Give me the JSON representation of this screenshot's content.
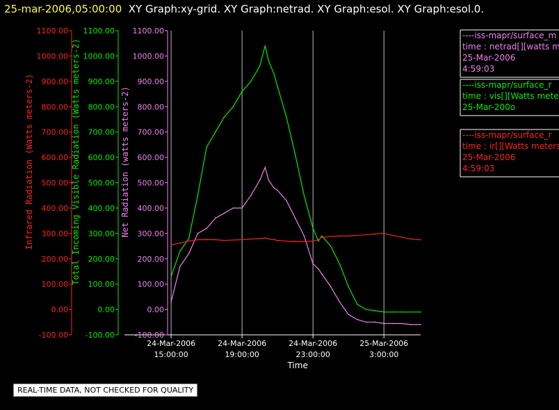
{
  "header": {
    "date_text": "25-mar-2006,05:00:00",
    "graph_titles": "XY Graph:xy-grid.  XY Graph:netrad.  XY Graph:esol.  XY Graph:esol.0."
  },
  "quality_note": "REAL-TIME DATA, NOT CHECKED FOR QUALITY",
  "colors": {
    "ir": "#ff2020",
    "vis": "#00ee00",
    "net": "#ee82ee",
    "grid": "#bbbbbb",
    "axis": "#ffffff"
  },
  "chart_data": {
    "type": "line",
    "xlabel": "Time",
    "x_ticks": [
      {
        "top": "24-Mar-2006",
        "bottom": "15:00:00",
        "hours": 0
      },
      {
        "top": "24-Mar-2006",
        "bottom": "19:00:00",
        "hours": 4
      },
      {
        "top": "24-Mar-2006",
        "bottom": "23:00:00",
        "hours": 8
      },
      {
        "top": "25-Mar-2006",
        "bottom": "3:00:00",
        "hours": 12
      }
    ],
    "xlim_hours": [
      -0.2,
      14.07
    ],
    "ylim": [
      -100,
      1100
    ],
    "y_ticks": [
      "-100.00",
      "0.00",
      "100.00",
      "200.00",
      "300.00",
      "400.00",
      "500.00",
      "600.00",
      "700.00",
      "800.00",
      "900.00",
      "1000.00",
      "1100.00"
    ],
    "y_axes": [
      {
        "key": "ir",
        "label": "Infrared Radiation (Watts meters-2)"
      },
      {
        "key": "vis",
        "label": "Total Incoming Visible Radiation (Watts meters-2)"
      },
      {
        "key": "net",
        "label": "Net Radiation (watts meters-2)"
      }
    ],
    "legend": [
      {
        "key": "net",
        "lines": [
          "----iss-mapr/surface_m",
          "time : netrad[][watts me",
          "25-Mar-2006",
          "4:59:03"
        ]
      },
      {
        "key": "vis",
        "lines": [
          "----iss-mapr/surface_r",
          "time : vis[][Watts meter",
          "25-Mar-200o"
        ]
      },
      {
        "key": "ir",
        "lines": [
          "----iss-mapr/surface_r",
          "time : ir[][Watts meters",
          "25-Mar-2006",
          "4:59:03"
        ]
      }
    ],
    "series": [
      {
        "key": "vis",
        "x": [
          0,
          0.5,
          1,
          1.5,
          2,
          2.5,
          3,
          3.5,
          4,
          4.5,
          5,
          5.3,
          5.5,
          5.8,
          6,
          6.5,
          7,
          7.5,
          8,
          8.3,
          8.5,
          9,
          9.5,
          10,
          10.5,
          11,
          11.5,
          12,
          12.5,
          13,
          13.5,
          14.07
        ],
        "values": [
          130,
          230,
          280,
          450,
          640,
          700,
          760,
          800,
          860,
          900,
          960,
          1040,
          980,
          930,
          880,
          760,
          610,
          450,
          320,
          270,
          290,
          250,
          180,
          90,
          20,
          0,
          -5,
          -10,
          -10,
          -10,
          -10,
          -10
        ]
      },
      {
        "key": "net",
        "x": [
          0,
          0.5,
          1,
          1.5,
          2,
          2.5,
          3,
          3.5,
          4,
          4.5,
          5,
          5.3,
          5.5,
          5.8,
          6,
          6.5,
          7,
          7.5,
          8,
          8.3,
          8.5,
          9,
          9.5,
          10,
          10.5,
          11,
          11.5,
          12,
          12.5,
          13,
          13.5,
          14.07
        ],
        "values": [
          30,
          170,
          220,
          300,
          320,
          360,
          380,
          400,
          400,
          450,
          510,
          560,
          510,
          480,
          470,
          430,
          360,
          290,
          180,
          160,
          140,
          90,
          30,
          -20,
          -40,
          -50,
          -50,
          -55,
          -55,
          -55,
          -60,
          -60
        ]
      },
      {
        "key": "ir",
        "x": [
          0,
          0.5,
          1,
          1.5,
          2,
          2.5,
          3,
          3.5,
          4,
          4.5,
          5,
          5.3,
          5.5,
          5.8,
          6,
          6.5,
          7,
          7.5,
          8,
          8.3,
          8.5,
          9,
          9.5,
          10,
          10.5,
          11,
          11.5,
          12,
          12.5,
          13,
          13.5,
          14.07
        ],
        "values": [
          255,
          262,
          270,
          275,
          276,
          275,
          272,
          274,
          275,
          278,
          280,
          282,
          278,
          276,
          272,
          270,
          268,
          268,
          270,
          275,
          285,
          288,
          290,
          290,
          292,
          295,
          298,
          300,
          292,
          285,
          278,
          275
        ]
      }
    ]
  }
}
